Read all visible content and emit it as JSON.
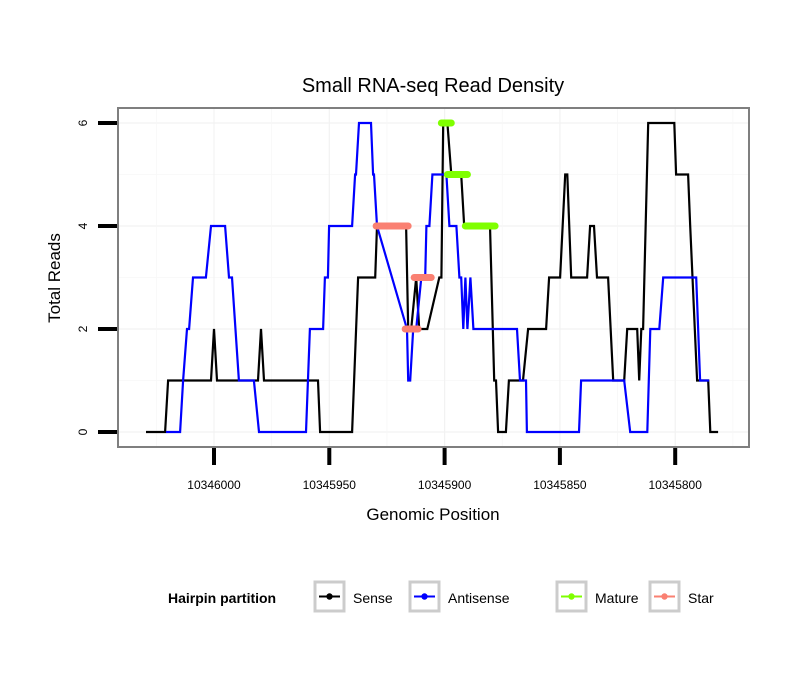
{
  "chart_data": {
    "type": "line",
    "title": "Small RNA-seq Read Density",
    "xlabel": "Genomic Position",
    "ylabel": "Total Reads",
    "x_reversed": true,
    "xlim": [
      10346029,
      10345774
    ],
    "ylim": [
      -0.3,
      6.3
    ],
    "x_ticks": [
      10346000,
      10345950,
      10345900,
      10345850,
      10345800
    ],
    "x_tick_labels": [
      "10346000",
      "10345950",
      "10345900",
      "10345850",
      "10345800"
    ],
    "y_ticks": [
      0,
      2,
      4,
      6
    ],
    "y_tick_labels": [
      "0",
      "2",
      "4",
      "6"
    ],
    "grid": true,
    "legend": {
      "title": "Hairpin partition",
      "placement": "bottom",
      "entries": [
        "Sense",
        "Antisense",
        "Mature",
        "Star"
      ]
    },
    "series": [
      {
        "name": "Sense",
        "color": "#000000",
        "points": [
          [
            10346029.5,
            0
          ],
          [
            10346021.2,
            0
          ],
          [
            10346019.9,
            1
          ],
          [
            10346001.3,
            1
          ],
          [
            10346000.0,
            2
          ],
          [
            10345998.7,
            1
          ],
          [
            10345980.9,
            1
          ],
          [
            10345979.6,
            2
          ],
          [
            10345978.3,
            1
          ],
          [
            10345954.9,
            1
          ],
          [
            10345954.0,
            0
          ],
          [
            10345940.1,
            0
          ],
          [
            10345937.5,
            3
          ],
          [
            10345930.1,
            3
          ],
          [
            10345929.3,
            4
          ],
          [
            10345916.7,
            4
          ],
          [
            10345915.8,
            2
          ],
          [
            10345914.5,
            2
          ],
          [
            10345912.3,
            3
          ],
          [
            10345911.0,
            2
          ],
          [
            10345907.5,
            2
          ],
          [
            10345902.3,
            3
          ],
          [
            10345901.4,
            3
          ],
          [
            10345900.6,
            6
          ],
          [
            10345898.8,
            6
          ],
          [
            10345897.1,
            5
          ],
          [
            10345892.8,
            5
          ],
          [
            10345891.5,
            4
          ],
          [
            10345880.3,
            4
          ],
          [
            10345878.5,
            1
          ],
          [
            10345877.7,
            1
          ],
          [
            10345876.8,
            0
          ],
          [
            10345873.4,
            0
          ],
          [
            10345872.1,
            1
          ],
          [
            10345866.0,
            1
          ],
          [
            10345863.8,
            2
          ],
          [
            10345856.0,
            2
          ],
          [
            10345854.7,
            3
          ],
          [
            10345849.9,
            3
          ],
          [
            10345847.7,
            5
          ],
          [
            10345846.8,
            5
          ],
          [
            10345845.1,
            3
          ],
          [
            10345838.2,
            3
          ],
          [
            10345836.9,
            4
          ],
          [
            10345835.2,
            4
          ],
          [
            10345833.9,
            3
          ],
          [
            10345829.1,
            3
          ],
          [
            10345826.9,
            1
          ],
          [
            10345822.1,
            1
          ],
          [
            10345820.8,
            2
          ],
          [
            10345816.5,
            2
          ],
          [
            10345815.6,
            1
          ],
          [
            10345814.7,
            2
          ],
          [
            10345813.9,
            2
          ],
          [
            10345811.7,
            6
          ],
          [
            10345800.4,
            6
          ],
          [
            10345799.6,
            5
          ],
          [
            10345794.4,
            5
          ],
          [
            10345793.5,
            4
          ],
          [
            10345790.5,
            1
          ],
          [
            10345785.7,
            1
          ],
          [
            10345784.8,
            0
          ],
          [
            10345781.4,
            0
          ]
        ]
      },
      {
        "name": "Antisense",
        "color": "#0000ff",
        "points": [
          [
            10346020.8,
            0
          ],
          [
            10346014.7,
            0
          ],
          [
            10346013.4,
            1
          ],
          [
            10346011.7,
            2
          ],
          [
            10346010.8,
            2
          ],
          [
            10346009.1,
            3
          ],
          [
            10346003.5,
            3
          ],
          [
            10346001.3,
            4
          ],
          [
            10345995.2,
            4
          ],
          [
            10345993.5,
            3
          ],
          [
            10345992.2,
            3
          ],
          [
            10345989.2,
            1
          ],
          [
            10345982.7,
            1
          ],
          [
            10345980.5,
            0
          ],
          [
            10345960.1,
            0
          ],
          [
            10345958.4,
            2
          ],
          [
            10345952.7,
            2
          ],
          [
            10345951.9,
            3
          ],
          [
            10345950.6,
            3
          ],
          [
            10345950.1,
            4
          ],
          [
            10345940.1,
            4
          ],
          [
            10345938.8,
            5
          ],
          [
            10345938.4,
            5
          ],
          [
            10345937.1,
            6
          ],
          [
            10345931.9,
            6
          ],
          [
            10345931.0,
            5
          ],
          [
            10345930.6,
            5
          ],
          [
            10345929.3,
            4
          ],
          [
            10345916.3,
            2
          ],
          [
            10345915.8,
            1
          ],
          [
            10345914.9,
            1
          ],
          [
            10345913.6,
            2
          ],
          [
            10345912.3,
            2
          ],
          [
            10345910.1,
            3
          ],
          [
            10345908.4,
            3
          ],
          [
            10345907.9,
            4
          ],
          [
            10345906.6,
            4
          ],
          [
            10345905.3,
            5
          ],
          [
            10345899.2,
            5
          ],
          [
            10345897.9,
            4
          ],
          [
            10345894.9,
            4
          ],
          [
            10345893.6,
            3
          ],
          [
            10345892.8,
            3
          ],
          [
            10345891.9,
            2
          ],
          [
            10345891.0,
            3
          ],
          [
            10345890.1,
            2
          ],
          [
            10345888.8,
            3
          ],
          [
            10345887.5,
            2
          ],
          [
            10345868.6,
            2
          ],
          [
            10345867.3,
            1
          ],
          [
            10345864.7,
            1
          ],
          [
            10345864.3,
            0
          ],
          [
            10345841.7,
            0
          ],
          [
            10345840.8,
            1
          ],
          [
            10345822.1,
            1
          ],
          [
            10345819.5,
            0
          ],
          [
            10345812.1,
            0
          ],
          [
            10345810.8,
            2
          ],
          [
            10345806.9,
            2
          ],
          [
            10345805.2,
            3
          ],
          [
            10345790.9,
            3
          ],
          [
            10345789.2,
            1
          ],
          [
            10345785.3,
            1
          ]
        ]
      },
      {
        "name": "Mature",
        "color": "#7fff00",
        "segments": [
          {
            "from": 10345901.4,
            "to": 10345897.1,
            "value": 6
          },
          {
            "from": 10345898.8,
            "to": 10345890.1,
            "value": 5
          },
          {
            "from": 10345891.0,
            "to": 10345878.1,
            "value": 4
          }
        ]
      },
      {
        "name": "Star",
        "color": "#fa8072",
        "segments": [
          {
            "from": 10345929.7,
            "to": 10345915.8,
            "value": 4
          },
          {
            "from": 10345917.1,
            "to": 10345911.5,
            "value": 2
          },
          {
            "from": 10345913.2,
            "to": 10345905.8,
            "value": 3
          }
        ]
      }
    ]
  }
}
